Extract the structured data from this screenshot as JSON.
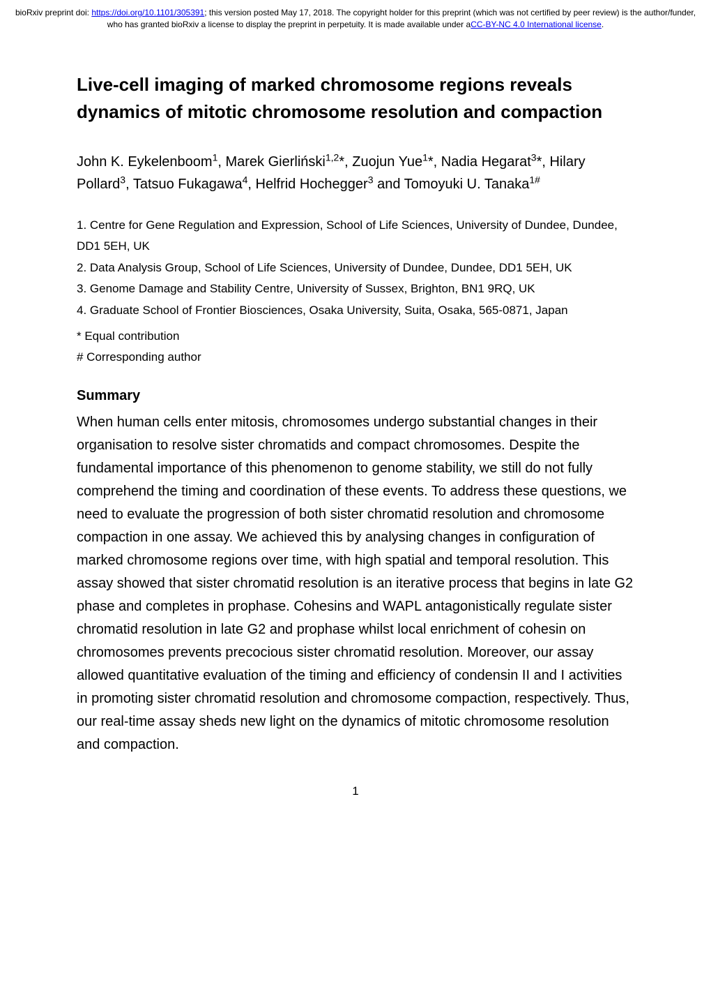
{
  "banner": {
    "prefix": "bioRxiv preprint doi: ",
    "doi_url": "https://doi.org/10.1101/305391",
    "middle": "; this version posted May 17, 2018. The copyright holder for this preprint (which was not certified by peer review) is the author/funder, who has granted bioRxiv a license to display the preprint in perpetuity. It is made available under a",
    "license_text": "CC-BY-NC 4.0 International license",
    "suffix": "."
  },
  "title_line1": "Live-cell imaging of marked chromosome regions reveals",
  "title_line2": "dynamics of mitotic chromosome resolution and compaction",
  "authors": {
    "a1_name": "John K. Eykelenboom",
    "a1_sup": "1",
    "a2_name": "Marek Gierliński",
    "a2_sup": "1,2",
    "a2_star": "*",
    "a3_name": "Zuojun Yue",
    "a3_sup": "1",
    "a3_star": "*",
    "a4_name": "Nadia Hegarat",
    "a4_sup": "3",
    "a4_star": "*",
    "a5_name": "Hilary Pollard",
    "a5_sup": "3",
    "a6_name": "Tatsuo Fukagawa",
    "a6_sup": "4",
    "a7_name": "Helfrid Hochegger",
    "a7_sup": "3",
    "a8_name": "Tomoyuki U. Tanaka",
    "a8_sup": "1#",
    "and": " and "
  },
  "affiliations": {
    "aff1": "1. Centre for Gene Regulation and Expression, School of Life Sciences, University of Dundee, Dundee, DD1 5EH, UK",
    "aff2": "2. Data Analysis Group, School of Life Sciences, University of Dundee, Dundee, DD1 5EH, UK",
    "aff3": "3. Genome Damage and Stability Centre, University of Sussex, Brighton, BN1 9RQ, UK",
    "aff4": "4. Graduate School of Frontier Biosciences, Osaka University, Suita, Osaka, 565-0871, Japan"
  },
  "notes": {
    "equal": "* Equal contribution",
    "corresponding": "# Corresponding author"
  },
  "summary": {
    "heading": "Summary",
    "body": "When human cells enter mitosis, chromosomes undergo substantial changes in their organisation to resolve sister chromatids and compact chromosomes. Despite the fundamental importance of this phenomenon to genome stability, we still do not fully comprehend the timing and coordination of these events. To address these questions, we need to evaluate the progression of both sister chromatid resolution and chromosome compaction in one assay. We achieved this by analysing changes in configuration of marked chromosome regions over time, with high spatial and temporal resolution. This assay showed that sister chromatid resolution is an iterative process that begins in late G2 phase and completes in prophase. Cohesins and WAPL antagonistically regulate sister chromatid resolution in late G2 and prophase whilst local enrichment of cohesin on chromosomes prevents precocious sister chromatid resolution. Moreover, our assay allowed quantitative evaluation of the timing and efficiency of condensin II and I activities in promoting sister chromatid resolution and chromosome compaction, respectively. Thus, our real-time assay sheds new light on the dynamics of mitotic chromosome resolution and compaction."
  },
  "page_number": "1"
}
